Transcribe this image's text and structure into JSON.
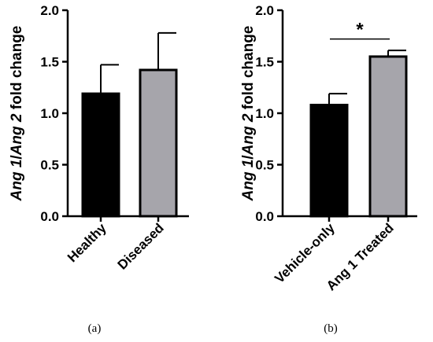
{
  "colors": {
    "axis": "#000000",
    "bar_edge": "#000000"
  },
  "chart_data": [
    {
      "panel_label": "(a)",
      "type": "bar",
      "ylabel": {
        "italic_part1": "Ang 1",
        "slash": "/",
        "italic_part2": "Ang 2",
        "rest": " fold change"
      },
      "ylim": [
        0,
        2.0
      ],
      "yticks": [
        0.0,
        0.5,
        1.0,
        1.5,
        2.0
      ],
      "ytick_labels": [
        "0.0",
        "0.5",
        "1.0",
        "1.5",
        "2.0"
      ],
      "categories": [
        "Healthy",
        "Diseased"
      ],
      "values": [
        1.19,
        1.42
      ],
      "errors": [
        0.28,
        0.36
      ],
      "bar_colors": [
        "#000000",
        "#a6a5ab"
      ],
      "significance": null
    },
    {
      "panel_label": "(b)",
      "type": "bar",
      "ylabel": {
        "italic_part1": "Ang 1",
        "slash": "/",
        "italic_part2": "Ang 2",
        "rest": " fold change"
      },
      "ylim": [
        0,
        2.0
      ],
      "yticks": [
        0.0,
        0.5,
        1.0,
        1.5,
        2.0
      ],
      "ytick_labels": [
        "0.0",
        "0.5",
        "1.0",
        "1.5",
        "2.0"
      ],
      "categories": [
        "Vehicle-only",
        "Ang 1 Treated"
      ],
      "values": [
        1.08,
        1.55
      ],
      "errors": [
        0.11,
        0.06
      ],
      "bar_colors": [
        "#000000",
        "#a6a5ab"
      ],
      "significance": {
        "mark": "*",
        "between": [
          0,
          1
        ],
        "level": 1.72
      }
    }
  ]
}
